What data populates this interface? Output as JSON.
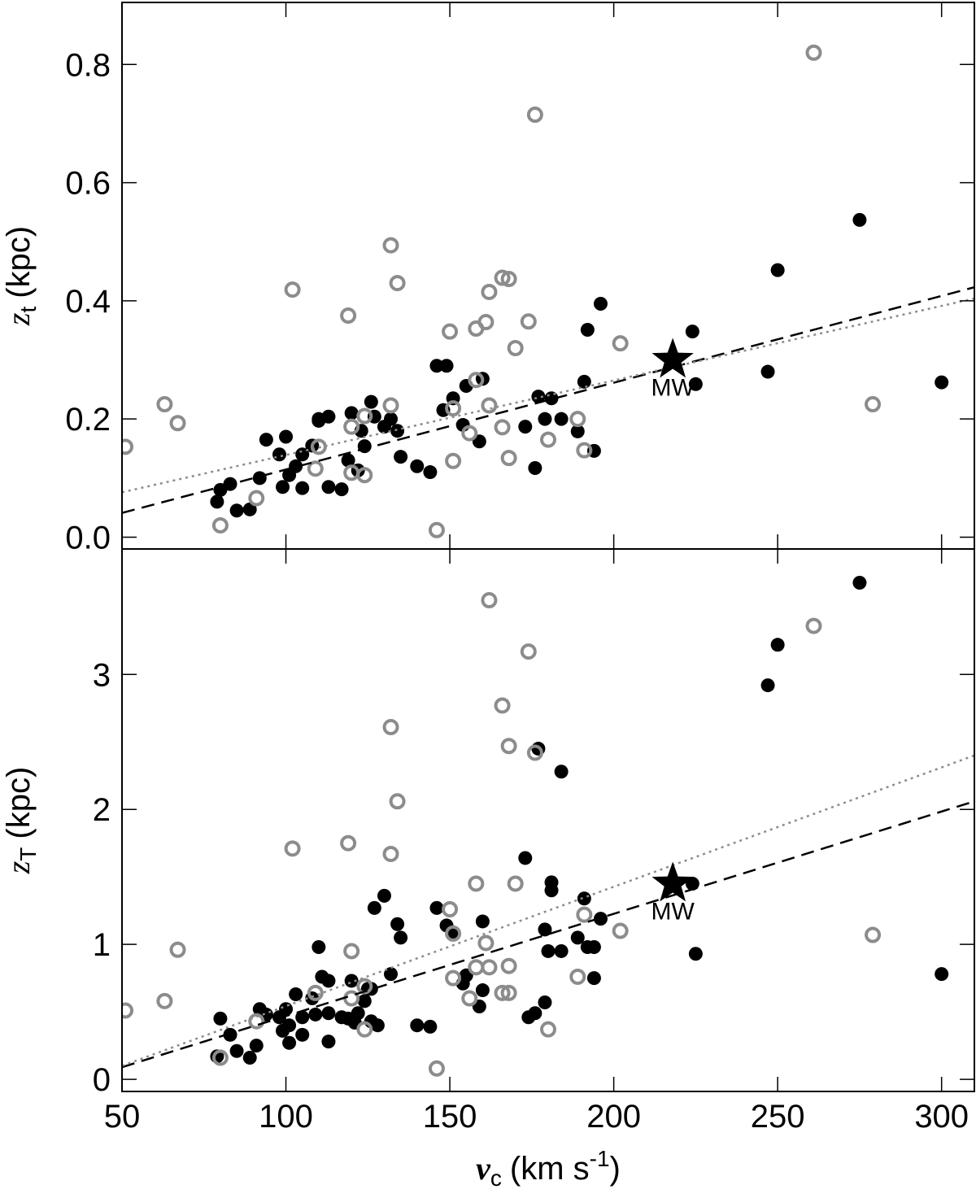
{
  "chart_data": [
    {
      "type": "scatter",
      "xlim": [
        50,
        310
      ],
      "xticks": [
        50,
        100,
        150,
        200,
        250,
        300
      ],
      "xtick_labels": false,
      "ylim": [
        -0.02,
        0.905
      ],
      "yticks": [
        {
          "value": 0,
          "label": "0.0"
        },
        0.2,
        0.4,
        0.6,
        0.8
      ],
      "ylabel": {
        "symbol": "z",
        "subscript": "t",
        "unit": "(kpc)"
      },
      "series": [
        {
          "marker": "filled",
          "color": "#000000",
          "x": [
            79,
            80,
            83,
            85,
            89,
            92,
            94,
            98,
            100,
            99,
            101,
            103,
            105,
            105,
            108,
            110,
            110,
            113,
            113,
            117,
            119,
            120,
            122,
            123,
            124,
            126,
            127,
            130,
            132,
            134,
            135,
            140,
            144,
            146,
            149,
            151,
            154,
            155,
            159,
            160,
            173,
            176,
            177,
            179,
            181,
            184,
            189,
            191,
            192,
            194,
            196,
            224,
            225,
            247,
            250,
            275,
            300,
            148
          ],
          "values": [
            0.06,
            0.08,
            0.09,
            0.045,
            0.047,
            0.1,
            0.165,
            0.14,
            0.17,
            0.085,
            0.105,
            0.12,
            0.14,
            0.083,
            0.155,
            0.2,
            0.197,
            0.204,
            0.085,
            0.081,
            0.13,
            0.21,
            0.113,
            0.18,
            0.154,
            0.229,
            0.204,
            0.187,
            0.2,
            0.18,
            0.136,
            0.12,
            0.11,
            0.29,
            0.29,
            0.235,
            0.19,
            0.256,
            0.162,
            0.268,
            0.187,
            0.117,
            0.238,
            0.2,
            0.235,
            0.2,
            0.179,
            0.263,
            0.351,
            0.146,
            0.395,
            0.348,
            0.259,
            0.28,
            0.452,
            0.537,
            0.262,
            0.215
          ]
        },
        {
          "marker": "open",
          "color": "#8c8c8c",
          "x": [
            51,
            63,
            67,
            80,
            91,
            102,
            109,
            110,
            119,
            120,
            120,
            124,
            124,
            132,
            132,
            134,
            146,
            150,
            151,
            151,
            156,
            158,
            158,
            161,
            162,
            162,
            166,
            166,
            168,
            168,
            170,
            174,
            176,
            180,
            189,
            191,
            202,
            261,
            279
          ],
          "values": [
            0.153,
            0.225,
            0.193,
            0.02,
            0.066,
            0.419,
            0.116,
            0.153,
            0.375,
            0.187,
            0.109,
            0.205,
            0.105,
            0.494,
            0.223,
            0.43,
            0.012,
            0.348,
            0.218,
            0.129,
            0.176,
            0.266,
            0.353,
            0.364,
            0.223,
            0.415,
            0.439,
            0.186,
            0.437,
            0.134,
            0.32,
            0.365,
            0.715,
            0.165,
            0.2,
            0.147,
            0.328,
            0.82,
            0.225
          ]
        },
        {
          "marker": "none",
          "line": "dashed",
          "color": "#000000",
          "x": [
            50,
            310
          ],
          "values": [
            0.041,
            0.423
          ]
        },
        {
          "marker": "none",
          "line": "dotted",
          "color": "#8c8c8c",
          "x": [
            50,
            310
          ],
          "values": [
            0.076,
            0.404
          ]
        }
      ],
      "annotation": {
        "label": "MW",
        "x": 218,
        "y": 0.3
      }
    },
    {
      "type": "scatter",
      "xlim": [
        50,
        310
      ],
      "xticks": [
        50,
        100,
        150,
        200,
        250,
        300
      ],
      "xtick_labels": true,
      "xlabel": {
        "symbol": "v",
        "subscript": "c",
        "unit": "(km s",
        "superscript": "-1",
        "close": ")"
      },
      "ylim": [
        -0.09,
        3.93
      ],
      "yticks": [
        0,
        1,
        2,
        3
      ],
      "ylabel": {
        "symbol": "z",
        "subscript": "T",
        "unit": "(kpc)"
      },
      "series": [
        {
          "marker": "filled",
          "color": "#000000",
          "x": [
            79,
            80,
            83,
            85,
            89,
            91,
            92,
            94,
            98,
            100,
            99,
            101,
            101,
            103,
            105,
            105,
            108,
            109,
            110,
            111,
            113,
            113,
            113,
            117,
            119,
            120,
            121,
            122,
            124,
            125,
            126,
            126,
            127,
            128,
            130,
            132,
            134,
            135,
            140,
            144,
            146,
            149,
            151,
            154,
            155,
            159,
            160,
            160,
            173,
            174,
            176,
            177,
            179,
            179,
            180,
            181,
            181,
            184,
            184,
            189,
            191,
            192,
            194,
            194,
            196,
            224,
            225,
            247,
            250,
            275,
            300
          ],
          "values": [
            0.17,
            0.45,
            0.33,
            0.21,
            0.16,
            0.25,
            0.52,
            0.48,
            0.46,
            0.52,
            0.36,
            0.4,
            0.27,
            0.63,
            0.33,
            0.46,
            0.6,
            0.48,
            0.98,
            0.76,
            0.73,
            0.49,
            0.28,
            0.46,
            0.45,
            0.73,
            0.42,
            0.49,
            0.58,
            0.67,
            0.67,
            0.43,
            1.27,
            0.4,
            1.36,
            0.78,
            1.15,
            1.05,
            0.4,
            0.39,
            1.27,
            1.14,
            1.08,
            0.71,
            0.77,
            0.54,
            0.66,
            1.17,
            1.64,
            0.46,
            0.49,
            2.45,
            0.57,
            1.11,
            0.95,
            1.46,
            1.4,
            0.95,
            2.28,
            1.05,
            1.34,
            0.98,
            0.75,
            0.98,
            1.19,
            1.45,
            0.93,
            2.92,
            3.22,
            3.68,
            0.78
          ]
        },
        {
          "marker": "open",
          "color": "#8c8c8c",
          "x": [
            51,
            63,
            67,
            80,
            91,
            102,
            109,
            119,
            120,
            120,
            124,
            124,
            132,
            132,
            134,
            146,
            150,
            151,
            151,
            156,
            158,
            158,
            161,
            162,
            162,
            166,
            166,
            168,
            168,
            168,
            170,
            174,
            176,
            180,
            189,
            191,
            202,
            261,
            279
          ],
          "values": [
            0.51,
            0.58,
            0.96,
            0.16,
            0.43,
            1.71,
            0.64,
            1.75,
            0.95,
            0.6,
            0.69,
            0.37,
            2.61,
            1.67,
            2.06,
            0.08,
            1.26,
            1.08,
            0.75,
            0.6,
            0.83,
            1.45,
            1.01,
            0.83,
            3.55,
            2.77,
            0.64,
            2.47,
            0.64,
            0.84,
            1.45,
            3.17,
            2.42,
            0.37,
            0.76,
            1.22,
            1.1,
            3.36,
            1.07
          ]
        },
        {
          "marker": "none",
          "line": "dashed",
          "color": "#000000",
          "x": [
            50,
            310
          ],
          "values": [
            0.09,
            2.06
          ]
        },
        {
          "marker": "none",
          "line": "dotted",
          "color": "#8c8c8c",
          "x": [
            50,
            310
          ],
          "values": [
            0.1,
            2.4
          ]
        }
      ],
      "annotation": {
        "label": "MW",
        "x": 218,
        "y": 1.45
      }
    }
  ]
}
